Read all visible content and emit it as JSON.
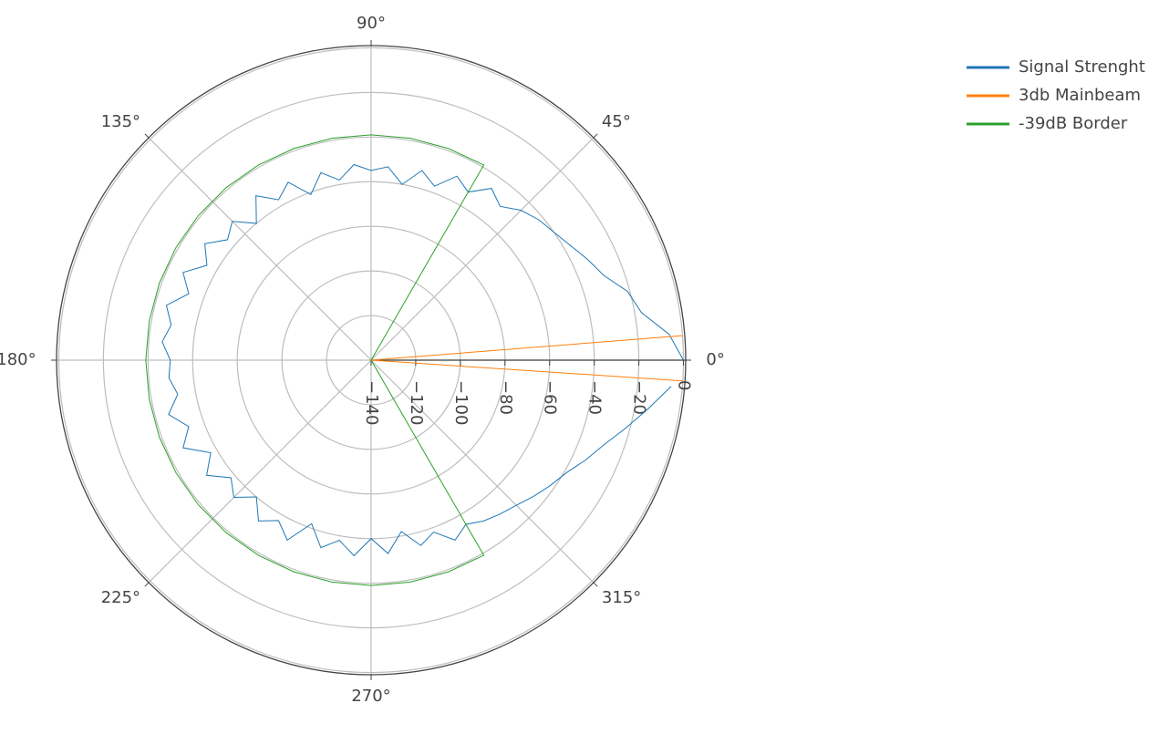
{
  "chart_data": {
    "type": "polar",
    "rlim": [
      -140,
      1
    ],
    "rticks": [
      {
        "value": -140,
        "label": "−140"
      },
      {
        "value": -120,
        "label": "−120"
      },
      {
        "value": -100,
        "label": "−100"
      },
      {
        "value": -80,
        "label": "−80"
      },
      {
        "value": -60,
        "label": "−60"
      },
      {
        "value": -40,
        "label": "−40"
      },
      {
        "value": -20,
        "label": "−20"
      },
      0
    ],
    "thetaticks": [
      {
        "value": 0,
        "label": "0°"
      },
      {
        "value": 45,
        "label": "45°"
      },
      {
        "value": 90,
        "label": "90°"
      },
      {
        "value": 135,
        "label": "135°"
      },
      {
        "value": 180,
        "label": "180°"
      },
      {
        "value": 225,
        "label": "225°"
      },
      {
        "value": 270,
        "label": "270°"
      },
      {
        "value": 315,
        "label": "315°"
      }
    ],
    "grid": true,
    "legend": "top-right",
    "series": [
      {
        "name": "Signal Strenght",
        "color": "#1f77b4",
        "theta": [
          0,
          5,
          10,
          15,
          20,
          25,
          30,
          35,
          40,
          45,
          50,
          55,
          60,
          65,
          70,
          75,
          80,
          85,
          90,
          95,
          100,
          105,
          110,
          115,
          120,
          125,
          130,
          135,
          140,
          145,
          150,
          155,
          160,
          165,
          170,
          175,
          180,
          185,
          190,
          195,
          200,
          205,
          210,
          215,
          220,
          225,
          230,
          235,
          240,
          245,
          250,
          255,
          260,
          265,
          270,
          275,
          280,
          285,
          290,
          295,
          300,
          305,
          310,
          315,
          320,
          325,
          330,
          335,
          340,
          345,
          350,
          355
        ],
        "r": [
          0,
          -6,
          -17,
          -21,
          -29,
          -33,
          -37,
          -40,
          -42,
          -45,
          -50,
          -46,
          -53,
          -49,
          -57,
          -52,
          -60,
          -53,
          -55,
          -52,
          -58,
          -53,
          -61,
          -52,
          -57,
          -50,
          -60,
          -52,
          -56,
          -49,
          -55,
          -47,
          -53,
          -45,
          -49,
          -46,
          -50,
          -49,
          -52,
          -46,
          -53,
          -47,
          -57,
          -50,
          -58,
          -53,
          -60,
          -52,
          -57,
          -51,
          -62,
          -53,
          -58,
          -52,
          -60,
          -53,
          -62,
          -54,
          -58,
          -51,
          -55,
          -52,
          -50,
          -48,
          -45,
          -42,
          -39,
          -34,
          -29,
          -22,
          -14,
          -5
        ]
      },
      {
        "name": "3db Mainbeam",
        "color": "#ff7f0e",
        "theta": [
          4.5,
          0,
          -3.8
        ],
        "r": [
          0,
          -140,
          0
        ]
      },
      {
        "name": "-39dB Border",
        "color": "#2ca02c",
        "theta": [
          60,
          60,
          70,
          80,
          90,
          100,
          110,
          120,
          130,
          140,
          150,
          160,
          170,
          180,
          190,
          200,
          210,
          220,
          230,
          240,
          250,
          260,
          270,
          280,
          290,
          300,
          300
        ],
        "r": [
          -140,
          -39,
          -39,
          -39,
          -39,
          -39,
          -39,
          -39,
          -39,
          -39,
          -39,
          -39,
          -39,
          -39,
          -39,
          -39,
          -39,
          -39,
          -39,
          -39,
          -39,
          -39,
          -39,
          -39,
          -39,
          -39,
          -140
        ]
      }
    ]
  }
}
